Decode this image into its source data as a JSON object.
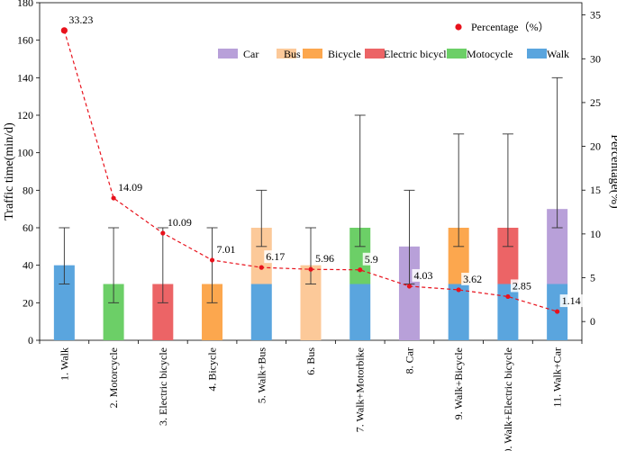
{
  "chart_data": {
    "type": "bar",
    "stacked": true,
    "categories": [
      "1. Walk",
      "2. Motorcycle",
      "3. Electric bicycle",
      "4. Bicycle",
      "5. Walk+Bus",
      "6. Bus",
      "7. Walk+Motorbike",
      "8. Car",
      "9. Walk+Bicycle",
      "10. Walk+Electric bicycle",
      "11. Walk+Car"
    ],
    "ylabel_left": "Traffic time(min/d)",
    "ylabel_right": "Percentage(%)",
    "ylim_left": [
      0,
      180
    ],
    "yticks_left": [
      0,
      20,
      40,
      60,
      80,
      100,
      120,
      140,
      160,
      180
    ],
    "ylim_right": [
      -2.14,
      36.4
    ],
    "yticks_right": [
      0,
      5,
      10,
      15,
      20,
      25,
      30,
      35
    ],
    "grid": false,
    "legend_placement": "top-right",
    "series": [
      {
        "name": "Walk",
        "color": "#5aa5de",
        "values": [
          40,
          0,
          0,
          0,
          30,
          0,
          30,
          0,
          30,
          30,
          30
        ]
      },
      {
        "name": "Motocycle",
        "color": "#6ccf67",
        "values": [
          0,
          30,
          0,
          0,
          0,
          0,
          30,
          0,
          0,
          0,
          0
        ]
      },
      {
        "name": "Electric bicycle",
        "color": "#ec6466",
        "values": [
          0,
          0,
          30,
          0,
          0,
          0,
          0,
          0,
          0,
          30,
          0
        ]
      },
      {
        "name": "Bicycle",
        "color": "#fca74e",
        "values": [
          0,
          0,
          0,
          30,
          0,
          0,
          0,
          0,
          30,
          0,
          0
        ]
      },
      {
        "name": "Bus",
        "color": "#fcc999",
        "values": [
          0,
          0,
          0,
          0,
          30,
          40,
          0,
          0,
          0,
          0,
          0
        ]
      },
      {
        "name": "Car",
        "color": "#b8a0d9",
        "values": [
          0,
          0,
          0,
          0,
          0,
          0,
          0,
          50,
          0,
          0,
          40
        ]
      }
    ],
    "error_bars": [
      {
        "low": 30,
        "high": 60
      },
      {
        "low": 20,
        "high": 60
      },
      {
        "low": 20,
        "high": 60
      },
      {
        "low": 20,
        "high": 60
      },
      {
        "low": 50,
        "high": 80
      },
      {
        "low": 30,
        "high": 60
      },
      {
        "low": 50,
        "high": 120
      },
      {
        "low": 30,
        "high": 80
      },
      {
        "low": 50,
        "high": 110
      },
      {
        "low": 50,
        "high": 110
      },
      {
        "low": 60,
        "high": 140
      }
    ],
    "percentage_series": {
      "name": "Percentage（%）",
      "color": "#e8121c",
      "values": [
        33.23,
        14.09,
        10.09,
        7.01,
        6.17,
        5.96,
        5.9,
        4.03,
        3.62,
        2.85,
        1.14
      ],
      "labels": [
        "33.23",
        "14.09",
        "10.09",
        "7.01",
        "6.17",
        "5.96",
        "5.9",
        "4.03",
        "3.62",
        "2.85",
        "1.14"
      ]
    },
    "legend_order": [
      "Car",
      "Bus",
      "Bicycle",
      "Electric bicycle",
      "Motocycle",
      "Walk"
    ]
  }
}
